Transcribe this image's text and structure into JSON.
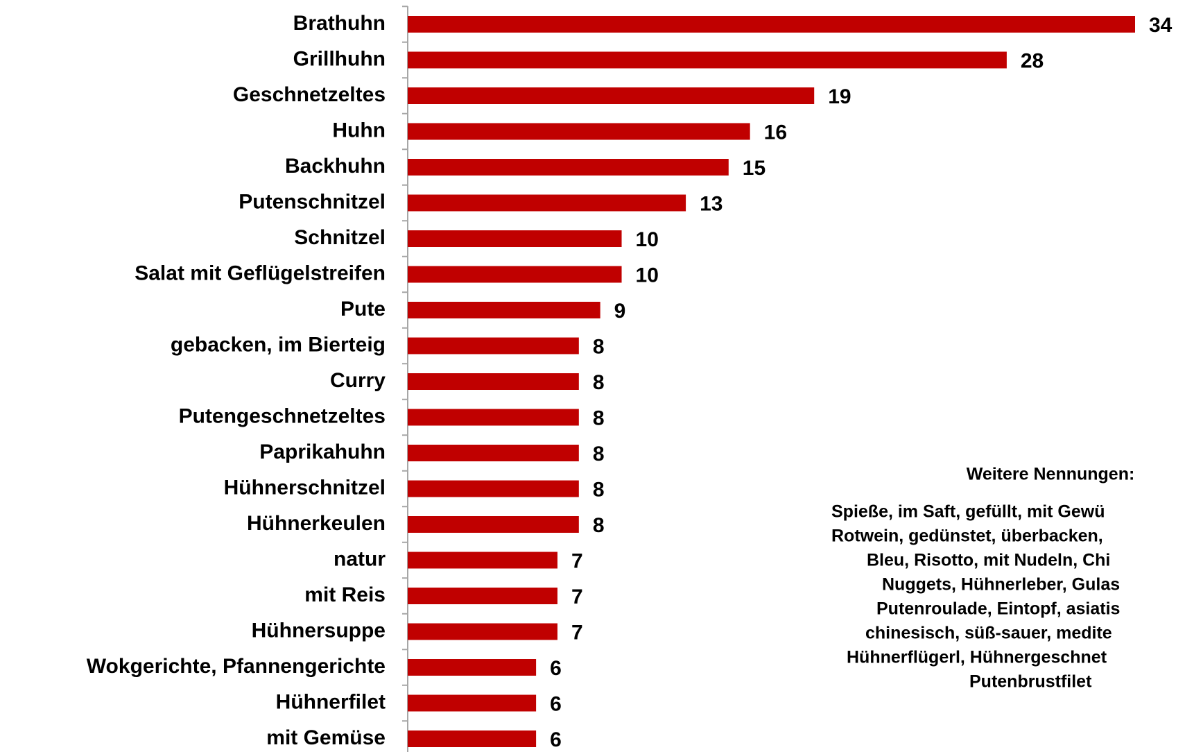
{
  "chart_data": {
    "type": "bar",
    "orientation": "horizontal",
    "categories": [
      "Brathuhn",
      "Grillhuhn",
      "Geschnetzeltes",
      "Huhn",
      "Backhuhn",
      "Putenschnitzel",
      "Schnitzel",
      "Salat mit Geflügelstreifen",
      "Pute",
      "gebacken, im Bierteig",
      "Curry",
      "Putengeschnetzeltes",
      "Paprikahuhn",
      "Hühnerschnitzel",
      "Hühnerkeulen",
      "natur",
      "mit Reis",
      "Hühnersuppe",
      "Wokgerichte, Pfannengerichte",
      "Hühnerfilet",
      "mit Gemüse"
    ],
    "values": [
      34,
      28,
      19,
      16,
      15,
      13,
      10,
      10,
      9,
      8,
      8,
      8,
      8,
      8,
      8,
      7,
      7,
      7,
      6,
      6,
      6
    ],
    "color": "#c00000",
    "xlim": [
      0,
      34
    ],
    "annotation": {
      "title": "Weitere Nennungen:",
      "lines": [
        "Spieße, im Saft, gefüllt, mit Gewü",
        "Rotwein, gedünstet, überbacken,",
        "Bleu, Risotto, mit Nudeln, Chi",
        "Nuggets, Hühnerleber, Gulas",
        "Putenroulade, Eintopf, asiatis",
        "chinesisch, süß-sauer, medite",
        "Hühnerflügerl, Hühnergeschnet",
        "Putenbrustfilet"
      ]
    }
  }
}
